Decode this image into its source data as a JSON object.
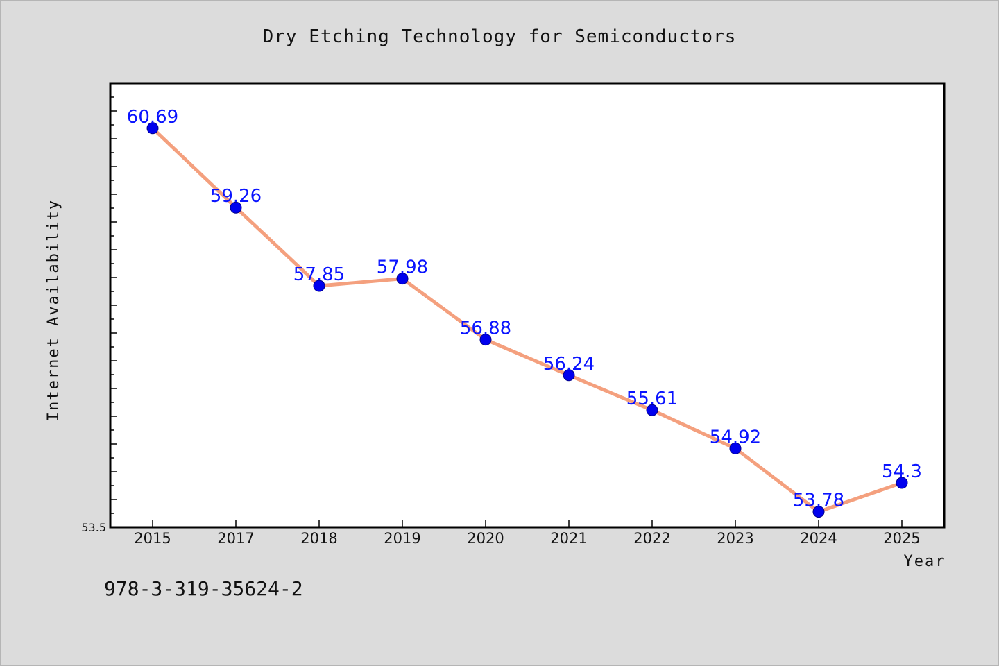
{
  "chart_data": {
    "type": "line",
    "title": "Dry Etching Technology for Semiconductors",
    "xlabel": "Year",
    "ylabel": "Internet Availability",
    "categories": [
      "2015",
      "2017",
      "2018",
      "2019",
      "2020",
      "2021",
      "2022",
      "2023",
      "2024",
      "2025"
    ],
    "series": [
      {
        "values": [
          60.69,
          59.26,
          57.85,
          57.98,
          56.88,
          56.24,
          55.61,
          54.92,
          53.78,
          54.3
        ],
        "labels": [
          "60.69",
          "59.26",
          "57.85",
          "57.98",
          "56.88",
          "56.24",
          "55.61",
          "54.92",
          "53.78",
          "54.3"
        ]
      }
    ],
    "ylim": [
      53.5,
      61.5
    ],
    "y_tick_labels": [
      "53.5"
    ],
    "grid": false,
    "line_color": "#f4a07e",
    "marker_color": "#0000ee",
    "label_color": "#0a14ff"
  },
  "footer": {
    "code": "978-3-319-35624-2"
  }
}
